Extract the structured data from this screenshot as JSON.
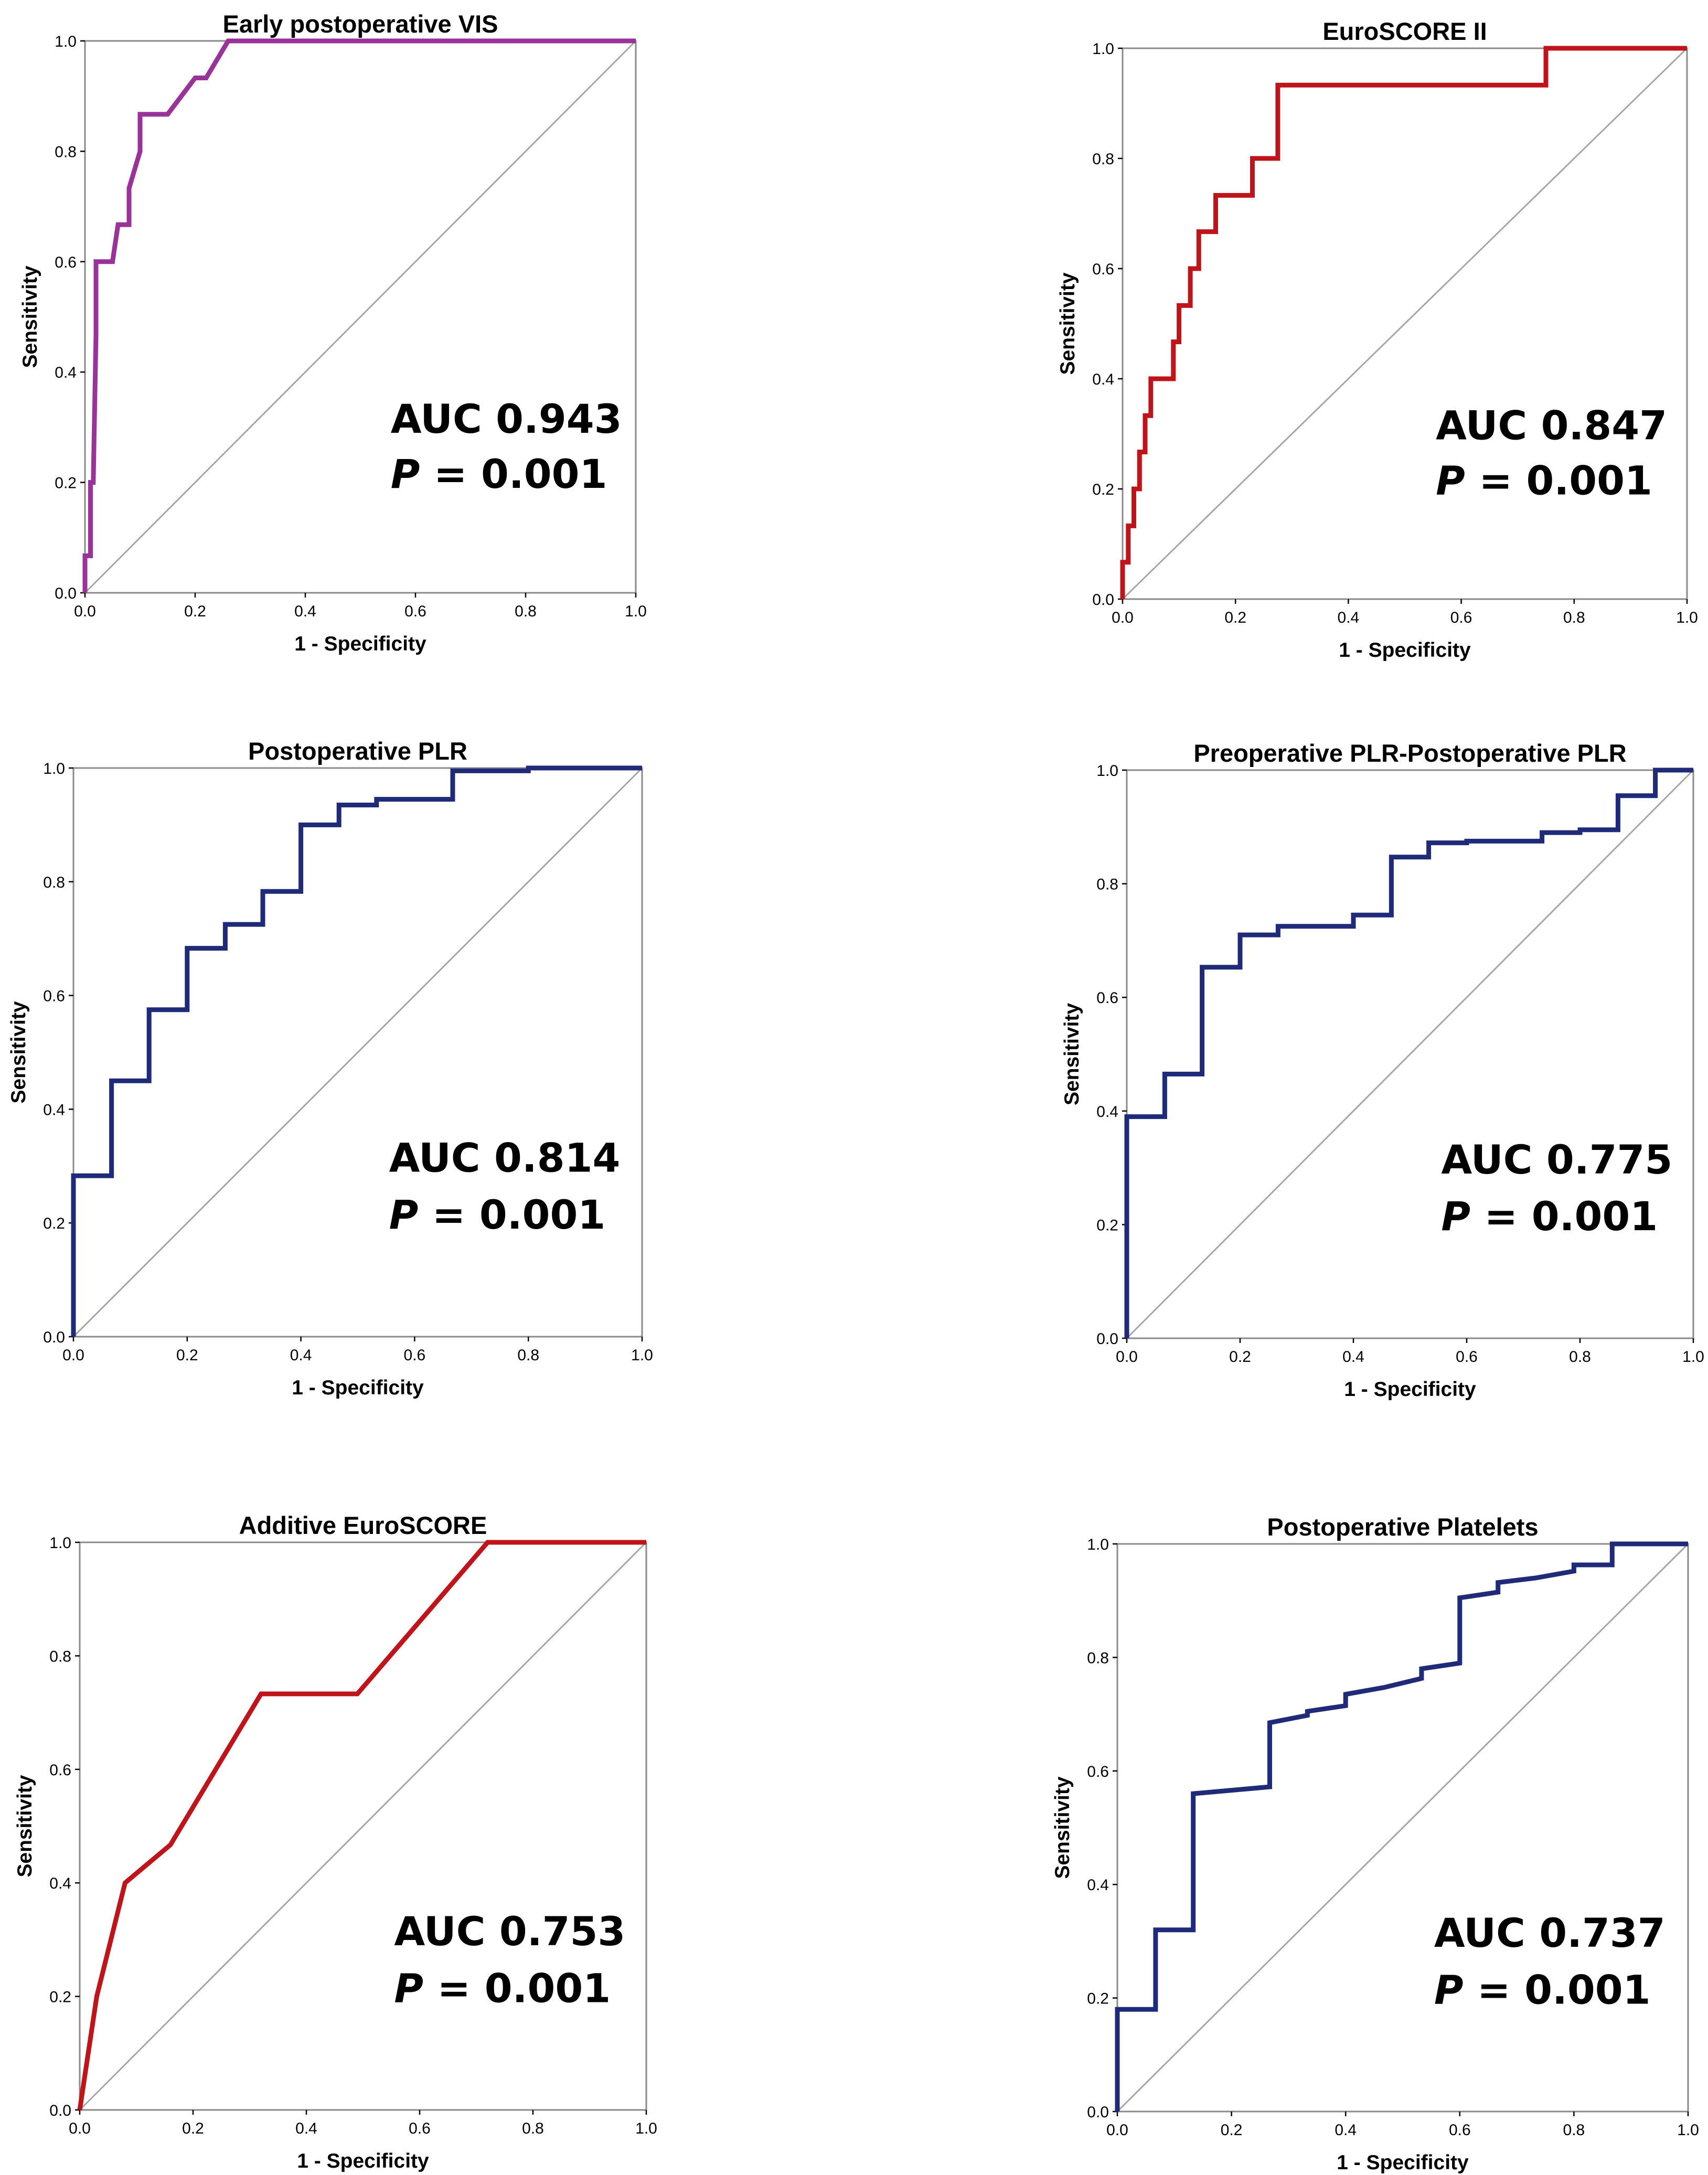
{
  "chart_data": [
    {
      "type": "line",
      "title": "Early postoperative VIS",
      "xlabel": "1 - Specificity",
      "ylabel": "Sensitivity",
      "xlim": [
        0,
        1
      ],
      "ylim": [
        0,
        1
      ],
      "ticks": [
        "0.0",
        "0.2",
        "0.4",
        "0.6",
        "0.8",
        "1.0"
      ],
      "color": "#993399",
      "x": [
        0,
        0,
        0.01,
        0.01,
        0.015,
        0.02,
        0.02,
        0.05,
        0.06,
        0.08,
        0.08,
        0.1,
        0.1,
        0.15,
        0.2,
        0.22,
        0.26,
        0.26,
        1.0
      ],
      "y": [
        0,
        0.067,
        0.067,
        0.2,
        0.2,
        0.467,
        0.6,
        0.6,
        0.667,
        0.667,
        0.733,
        0.8,
        0.867,
        0.867,
        0.933,
        0.933,
        1.0,
        1.0,
        1.0
      ],
      "auc_label": "AUC 0.943",
      "p_label": "P",
      "p_value": " = 0.001"
    },
    {
      "type": "line",
      "title": "EuroSCORE II",
      "xlabel": "1 - Specificity",
      "ylabel": "Sensitivity",
      "xlim": [
        0,
        1
      ],
      "ylim": [
        0,
        1
      ],
      "ticks": [
        "0.0",
        "0.2",
        "0.4",
        "0.6",
        "0.8",
        "1.0"
      ],
      "color": "#c0141b",
      "x": [
        0,
        0,
        0.01,
        0.01,
        0.02,
        0.02,
        0.03,
        0.03,
        0.04,
        0.04,
        0.05,
        0.05,
        0.09,
        0.09,
        0.1,
        0.1,
        0.12,
        0.12,
        0.135,
        0.135,
        0.165,
        0.165,
        0.23,
        0.23,
        0.275,
        0.275,
        0.75,
        0.75,
        1.0
      ],
      "y": [
        0,
        0.067,
        0.067,
        0.133,
        0.133,
        0.2,
        0.2,
        0.267,
        0.267,
        0.333,
        0.333,
        0.4,
        0.4,
        0.467,
        0.467,
        0.533,
        0.533,
        0.6,
        0.6,
        0.667,
        0.667,
        0.733,
        0.733,
        0.8,
        0.8,
        0.933,
        0.933,
        1.0,
        1.0
      ],
      "auc_label": "AUC 0.847",
      "p_label": "P",
      "p_value": " = 0.001"
    },
    {
      "type": "line",
      "title": "Postoperative PLR",
      "xlabel": "1 - Specificity",
      "ylabel": "Sensitivity",
      "xlim": [
        0,
        1
      ],
      "ylim": [
        0,
        1
      ],
      "ticks": [
        "0.0",
        "0.2",
        "0.4",
        "0.6",
        "0.8",
        "1.0"
      ],
      "color": "#1f2a78",
      "x": [
        0,
        0,
        0.067,
        0.067,
        0.133,
        0.133,
        0.2,
        0.2,
        0.267,
        0.267,
        0.333,
        0.333,
        0.4,
        0.4,
        0.467,
        0.467,
        0.533,
        0.533,
        0.667,
        0.667,
        0.8,
        0.8,
        1.0
      ],
      "y": [
        0,
        0.283,
        0.283,
        0.45,
        0.45,
        0.575,
        0.575,
        0.683,
        0.683,
        0.725,
        0.725,
        0.783,
        0.783,
        0.9,
        0.9,
        0.935,
        0.935,
        0.945,
        0.945,
        0.995,
        0.995,
        1.0,
        1.0
      ],
      "auc_label": "AUC 0.814",
      "p_label": "P",
      "p_value": " = 0.001"
    },
    {
      "type": "line",
      "title": "Preoperative PLR-Postoperative PLR",
      "xlabel": "1 - Specificity",
      "ylabel": "Sensitivity",
      "xlim": [
        0,
        1
      ],
      "ylim": [
        0,
        1
      ],
      "ticks": [
        "0.0",
        "0.2",
        "0.4",
        "0.6",
        "0.8",
        "1.0"
      ],
      "color": "#1f2a78",
      "x": [
        0,
        0,
        0.067,
        0.067,
        0.133,
        0.133,
        0.2,
        0.2,
        0.267,
        0.267,
        0.4,
        0.4,
        0.467,
        0.467,
        0.533,
        0.533,
        0.6,
        0.6,
        0.733,
        0.733,
        0.8,
        0.8,
        0.867,
        0.867,
        0.933,
        0.933,
        1.0
      ],
      "y": [
        0,
        0.39,
        0.39,
        0.465,
        0.465,
        0.653,
        0.653,
        0.71,
        0.71,
        0.725,
        0.725,
        0.745,
        0.745,
        0.847,
        0.847,
        0.872,
        0.872,
        0.875,
        0.875,
        0.89,
        0.89,
        0.895,
        0.895,
        0.955,
        0.955,
        1.0,
        1.0
      ],
      "auc_label": "AUC 0.775",
      "p_label": "P",
      "p_value": " = 0.001"
    },
    {
      "type": "line",
      "title": "Additive EuroSCORE",
      "xlabel": "1 - Specificity",
      "ylabel": "Sensitivity",
      "xlim": [
        0,
        1
      ],
      "ylim": [
        0,
        1
      ],
      "ticks": [
        "0.0",
        "0.2",
        "0.4",
        "0.6",
        "0.8",
        "1.0"
      ],
      "color": "#c0141b",
      "x": [
        0,
        0.01,
        0.03,
        0.08,
        0.16,
        0.32,
        0.49,
        0.72,
        1.0
      ],
      "y": [
        0,
        0.067,
        0.2,
        0.4,
        0.467,
        0.733,
        0.733,
        1.0,
        1.0
      ],
      "auc_label": "AUC 0.753",
      "p_label": "P",
      "p_value": " = 0.001"
    },
    {
      "type": "line",
      "title": "Postoperative Platelets",
      "xlabel": "1 - Specificity",
      "ylabel": "Sensitivity",
      "xlim": [
        0,
        1
      ],
      "ylim": [
        0,
        1
      ],
      "ticks": [
        "0.0",
        "0.2",
        "0.4",
        "0.6",
        "0.8",
        "1.0"
      ],
      "color": "#1f2a78",
      "x": [
        0,
        0,
        0.067,
        0.067,
        0.133,
        0.133,
        0.267,
        0.267,
        0.333,
        0.333,
        0.4,
        0.4,
        0.467,
        0.533,
        0.533,
        0.6,
        0.6,
        0.667,
        0.667,
        0.733,
        0.8,
        0.8,
        0.867,
        0.867,
        1.0
      ],
      "y": [
        0,
        0.18,
        0.18,
        0.32,
        0.32,
        0.56,
        0.572,
        0.685,
        0.698,
        0.705,
        0.715,
        0.735,
        0.747,
        0.763,
        0.78,
        0.79,
        0.905,
        0.915,
        0.932,
        0.94,
        0.952,
        0.963,
        0.963,
        1.0,
        1.0
      ],
      "auc_label": "AUC 0.737",
      "p_label": "P",
      "p_value": " = 0.001"
    }
  ]
}
